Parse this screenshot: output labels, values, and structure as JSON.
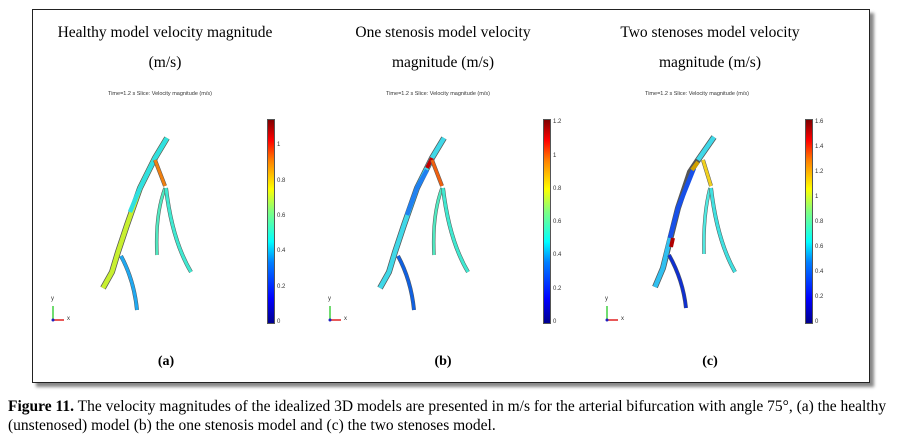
{
  "panels": [
    {
      "title_line1": "Healthy model velocity magnitude",
      "title_line2": "(m/s)",
      "plot_header": "Time=1.2 s   Slice: Velocity magnitude (m/s)",
      "colorbar_ticks": [
        "0",
        "0.2",
        "0.4",
        "0.6",
        "0.8",
        "1"
      ],
      "colorbar_max": 1.15,
      "label": "(a)"
    },
    {
      "title_line1": "One stenosis model velocity",
      "title_line2": "magnitude (m/s)",
      "plot_header": "Time=1.2 s   Slice: Velocity magnitude (m/s)",
      "colorbar_ticks": [
        "0",
        "0.2",
        "0.4",
        "0.6",
        "0.8",
        "1",
        "1.2"
      ],
      "colorbar_max": 1.22,
      "label": "(b)"
    },
    {
      "title_line1": "Two stenoses model velocity",
      "title_line2": "magnitude (m/s)",
      "plot_header": "Time=1.2 s   Slice: Velocity magnitude (m/s)",
      "colorbar_ticks": [
        "0",
        "0.2",
        "0.4",
        "0.6",
        "0.8",
        "1",
        "1.2",
        "1.4",
        "1.6"
      ],
      "colorbar_max": 1.62,
      "label": "(c)"
    }
  ],
  "axes": {
    "y": "y",
    "x": "x"
  },
  "caption": {
    "bold": "Figure 11.",
    "text": " The velocity magnitudes of the idealized 3D models are presented in m/s for the arterial bifurcation with angle 75°, (a) the healthy (unstenosed) model (b) the one stenosis model and (c) the two stenoses model."
  }
}
